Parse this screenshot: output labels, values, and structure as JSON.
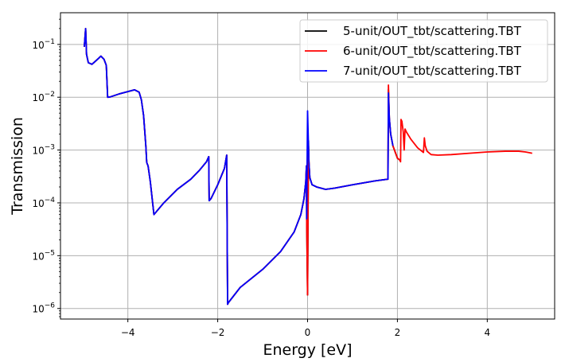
{
  "chart_data": {
    "type": "line",
    "xlabel": "Energy [eV]",
    "ylabel": "Transmission",
    "xlim": [
      -5.5,
      5.5
    ],
    "ylim_log10": [
      -6.2,
      -0.4
    ],
    "yscale": "log",
    "grid": true,
    "legend_position": "top-right",
    "x_ticks": [
      {
        "value": -4,
        "label": "−4"
      },
      {
        "value": -2,
        "label": "−2"
      },
      {
        "value": 0,
        "label": "0"
      },
      {
        "value": 2,
        "label": "2"
      },
      {
        "value": 4,
        "label": "4"
      }
    ],
    "y_ticks": [
      {
        "exp": -6,
        "base": "10",
        "sup": "−6"
      },
      {
        "exp": -5,
        "base": "10",
        "sup": "−5"
      },
      {
        "exp": -4,
        "base": "10",
        "sup": "−4"
      },
      {
        "exp": -3,
        "base": "10",
        "sup": "−3"
      },
      {
        "exp": -2,
        "base": "10",
        "sup": "−2"
      },
      {
        "exp": -1,
        "base": "10",
        "sup": "−1"
      }
    ],
    "series": [
      {
        "name": "5-unit/OUT_tbt/scattering.TBT",
        "color": "#000000",
        "x": [
          -4.97,
          -4.94,
          -4.92,
          -4.88,
          -4.8,
          -4.7,
          -4.6,
          -4.53,
          -4.48,
          -4.45,
          -4.4,
          -4.2,
          -4.0,
          -3.85,
          -3.75,
          -3.7,
          -3.65,
          -3.6,
          -3.58,
          -3.55,
          -3.5,
          -3.42,
          -3.2,
          -2.9,
          -2.6,
          -2.4,
          -2.25,
          -2.2,
          -2.19,
          -2.15,
          -2.0,
          -1.85,
          -1.8,
          -1.78,
          -1.76,
          -1.5,
          -1.0,
          -0.6,
          -0.3,
          -0.15,
          -0.08,
          -0.04,
          -0.025,
          -0.02,
          0.0,
          0.02,
          0.03,
          0.05,
          0.1,
          0.2,
          0.4,
          0.6,
          1.0,
          1.5,
          1.78,
          1.79,
          1.8,
          1.82,
          1.85,
          1.9,
          2.0,
          2.05
        ],
        "y": [
          0.09,
          0.2,
          0.065,
          0.045,
          0.042,
          0.05,
          0.06,
          0.052,
          0.04,
          0.01,
          0.0101,
          0.0115,
          0.0128,
          0.0138,
          0.0125,
          0.009,
          0.0045,
          0.0012,
          0.00058,
          0.0005,
          0.00025,
          6e-05,
          0.0001,
          0.00018,
          0.00028,
          0.00042,
          0.0006,
          0.00075,
          0.00011,
          0.00012,
          0.00022,
          0.00045,
          0.0008,
          1.2e-06,
          1.3e-06,
          2.5e-06,
          5.5e-06,
          1.2e-05,
          2.8e-05,
          6e-05,
          0.00012,
          0.00025,
          0.0005,
          5e-05,
          1.8e-06,
          0.0015,
          0.0006,
          0.0003,
          0.00022,
          0.0002,
          0.00018,
          0.00019,
          0.00022,
          0.00026,
          0.00028,
          0.00028,
          0.014,
          0.004,
          0.002,
          0.0012,
          0.0007,
          0.00065
        ]
      },
      {
        "name": "6-unit/OUT_tbt/scattering.TBT",
        "color": "#ff0000",
        "x": [
          -4.97,
          -4.94,
          -4.92,
          -4.88,
          -4.8,
          -4.7,
          -4.6,
          -4.53,
          -4.48,
          -4.45,
          -4.4,
          -4.2,
          -4.0,
          -3.85,
          -3.75,
          -3.7,
          -3.65,
          -3.6,
          -3.58,
          -3.55,
          -3.5,
          -3.42,
          -3.2,
          -2.9,
          -2.6,
          -2.4,
          -2.25,
          -2.2,
          -2.19,
          -2.15,
          -2.0,
          -1.85,
          -1.8,
          -1.78,
          -1.76,
          -1.5,
          -1.0,
          -0.6,
          -0.3,
          -0.15,
          -0.08,
          -0.04,
          -0.025,
          -0.02,
          0.0,
          0.02,
          0.03,
          0.05,
          0.1,
          0.2,
          0.4,
          0.6,
          1.0,
          1.5,
          1.78,
          1.79,
          1.8,
          1.82,
          1.85,
          1.9,
          2.0,
          2.05,
          2.07,
          2.08,
          2.1,
          2.13,
          2.15,
          2.17,
          2.2,
          2.3,
          2.45,
          2.58,
          2.6,
          2.62,
          2.66,
          2.75,
          2.9,
          3.2,
          3.6,
          4.0,
          4.4,
          4.7,
          4.85,
          5.0
        ],
        "y": [
          0.09,
          0.2,
          0.065,
          0.045,
          0.042,
          0.05,
          0.06,
          0.052,
          0.04,
          0.01,
          0.0101,
          0.0115,
          0.0128,
          0.0138,
          0.0125,
          0.009,
          0.0045,
          0.0012,
          0.00058,
          0.0005,
          0.00025,
          6e-05,
          0.0001,
          0.00018,
          0.00028,
          0.00042,
          0.0006,
          0.00075,
          0.00011,
          0.00012,
          0.00022,
          0.00045,
          0.0008,
          1.2e-06,
          1.3e-06,
          2.5e-06,
          5.5e-06,
          1.2e-05,
          2.8e-05,
          6e-05,
          0.00012,
          0.00025,
          0.0005,
          5e-05,
          1.8e-06,
          0.0012,
          0.0006,
          0.0003,
          0.00022,
          0.0002,
          0.00018,
          0.00019,
          0.00022,
          0.00026,
          0.00028,
          0.00028,
          0.017,
          0.004,
          0.002,
          0.0012,
          0.0007,
          0.00065,
          0.0006,
          0.0038,
          0.0035,
          0.0022,
          0.001,
          0.0025,
          0.0022,
          0.0016,
          0.0011,
          0.0009,
          0.0017,
          0.0012,
          0.00095,
          0.00082,
          0.0008,
          0.00082,
          0.00087,
          0.00092,
          0.00095,
          0.00095,
          0.00092,
          0.00087
        ]
      },
      {
        "name": "7-unit/OUT_tbt/scattering.TBT",
        "color": "#0000ff",
        "x": [
          -4.97,
          -4.94,
          -4.92,
          -4.88,
          -4.8,
          -4.7,
          -4.6,
          -4.53,
          -4.48,
          -4.45,
          -4.4,
          -4.2,
          -4.0,
          -3.85,
          -3.75,
          -3.7,
          -3.65,
          -3.6,
          -3.58,
          -3.55,
          -3.5,
          -3.42,
          -3.2,
          -2.9,
          -2.6,
          -2.4,
          -2.25,
          -2.2,
          -2.19,
          -2.15,
          -2.0,
          -1.85,
          -1.8,
          -1.78,
          -1.76,
          -1.5,
          -1.0,
          -0.6,
          -0.3,
          -0.15,
          -0.08,
          -0.04,
          -0.025,
          -0.02,
          0.0,
          0.02,
          0.03,
          0.05,
          0.1,
          0.2,
          0.4,
          0.6,
          1.0,
          1.5,
          1.78,
          1.79,
          1.8,
          1.82,
          1.85,
          1.9
        ],
        "y": [
          0.09,
          0.2,
          0.065,
          0.045,
          0.042,
          0.05,
          0.06,
          0.052,
          0.04,
          0.01,
          0.0101,
          0.0115,
          0.0128,
          0.0138,
          0.0125,
          0.009,
          0.0045,
          0.0012,
          0.00058,
          0.0005,
          0.00025,
          6e-05,
          0.0001,
          0.00018,
          0.00028,
          0.00042,
          0.0006,
          0.00075,
          0.00011,
          0.00012,
          0.00022,
          0.00045,
          0.0008,
          1.2e-06,
          1.3e-06,
          2.5e-06,
          5.5e-06,
          1.2e-05,
          2.8e-05,
          6e-05,
          0.00012,
          0.00025,
          0.0005,
          5e-05,
          0.0055,
          0.0012,
          0.0006,
          0.0003,
          0.00022,
          0.0002,
          0.00018,
          0.00019,
          0.00022,
          0.00026,
          0.00028,
          0.00028,
          0.012,
          0.004,
          0.002,
          0.0012
        ]
      }
    ]
  }
}
